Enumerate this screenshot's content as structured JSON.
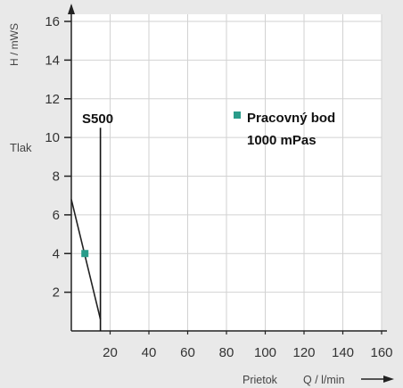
{
  "chart_data": {
    "type": "line",
    "xlabel": "Q / l/min",
    "xlabel_prefix": "Prietok",
    "ylabel": "H / mWS",
    "ylabel_side": "Tlak",
    "xlim": [
      0,
      160
    ],
    "ylim": [
      0,
      16
    ],
    "x_ticks": [
      "20",
      "40",
      "60",
      "80",
      "100",
      "120",
      "140",
      "160"
    ],
    "y_ticks": [
      "2",
      "4",
      "6",
      "8",
      "10",
      "12",
      "14",
      "16"
    ],
    "grid": true,
    "series": [
      {
        "name": "",
        "x": [
          0,
          15
        ],
        "y": [
          6.8,
          0.6
        ],
        "color": "#222222"
      }
    ],
    "vertical_line": {
      "label": "S500",
      "x": 15,
      "y_top": 10.5,
      "color": "#111111"
    },
    "operating_point": {
      "x": 7,
      "y": 4,
      "color": "#2a9c8a"
    },
    "legend": {
      "line1": "Pracovný bod",
      "line2": "1000 mPas",
      "marker_color": "#2a9c8a",
      "placement": "top-right"
    }
  }
}
